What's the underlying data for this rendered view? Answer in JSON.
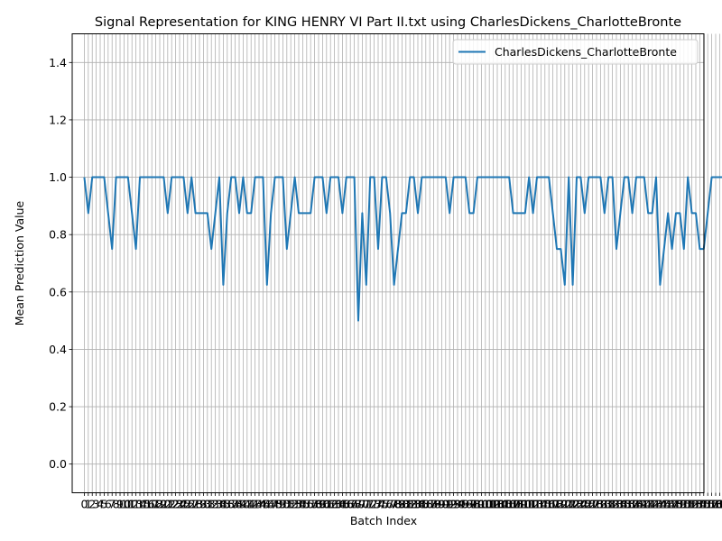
{
  "chart_data": {
    "type": "line",
    "title": "Signal Representation for KING HENRY VI Part II.txt using CharlesDickens_CharlotteBronte",
    "xlabel": "Batch Index",
    "ylabel": "Mean Prediction Value",
    "xlim": [
      -3.05,
      156.05
    ],
    "ylim": [
      -0.1,
      1.5
    ],
    "yticks": [
      0.0,
      0.2,
      0.4,
      0.6,
      0.8,
      1.0,
      1.2,
      1.4
    ],
    "ytick_labels": [
      "0.0",
      "0.2",
      "0.4",
      "0.6",
      "0.8",
      "1.0",
      "1.2",
      "1.4"
    ],
    "grid": true,
    "legend_position": "top-right",
    "series": [
      {
        "name": "CharlesDickens_CharlotteBronte",
        "color": "#1f77b4",
        "x_start": 0,
        "values": [
          1.0,
          0.875,
          1.0,
          1.0,
          1.0,
          1.0,
          0.875,
          0.75,
          1.0,
          1.0,
          1.0,
          1.0,
          0.875,
          0.75,
          1.0,
          1.0,
          1.0,
          1.0,
          1.0,
          1.0,
          1.0,
          0.875,
          1.0,
          1.0,
          1.0,
          1.0,
          0.875,
          1.0,
          0.875,
          0.875,
          0.875,
          0.875,
          0.75,
          0.875,
          1.0,
          0.625,
          0.875,
          1.0,
          1.0,
          0.875,
          1.0,
          0.875,
          0.875,
          1.0,
          1.0,
          1.0,
          0.625,
          0.875,
          1.0,
          1.0,
          1.0,
          0.75,
          0.875,
          1.0,
          0.875,
          0.875,
          0.875,
          0.875,
          1.0,
          1.0,
          1.0,
          0.875,
          1.0,
          1.0,
          1.0,
          0.875,
          1.0,
          1.0,
          1.0,
          0.5,
          0.875,
          0.625,
          1.0,
          1.0,
          0.75,
          1.0,
          1.0,
          0.875,
          0.625,
          0.75,
          0.875,
          0.875,
          1.0,
          1.0,
          0.875,
          1.0,
          1.0,
          1.0,
          1.0,
          1.0,
          1.0,
          1.0,
          0.875,
          1.0,
          1.0,
          1.0,
          1.0,
          0.875,
          0.875,
          1.0,
          1.0,
          1.0,
          1.0,
          1.0,
          1.0,
          1.0,
          1.0,
          1.0,
          0.875,
          0.875,
          0.875,
          0.875,
          1.0,
          0.875,
          1.0,
          1.0,
          1.0,
          1.0,
          0.875,
          0.75,
          0.75,
          0.625,
          1.0,
          0.625,
          1.0,
          1.0,
          0.875,
          1.0,
          1.0,
          1.0,
          1.0,
          0.875,
          1.0,
          1.0,
          0.75,
          0.875,
          1.0,
          1.0,
          0.875,
          1.0,
          1.0,
          1.0,
          0.875,
          0.875,
          1.0,
          0.625,
          0.75,
          0.875,
          0.75,
          0.875,
          0.875,
          0.75,
          1.0,
          0.875,
          0.875,
          0.75,
          0.75,
          0.875,
          1.0,
          1.0,
          1.0,
          1.0,
          1.0,
          1.0
        ]
      }
    ]
  }
}
